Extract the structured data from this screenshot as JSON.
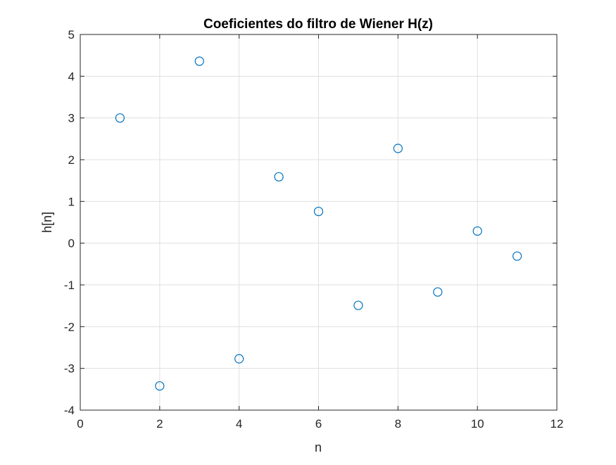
{
  "chart_data": {
    "type": "scatter",
    "title": "Coeficientes do filtro de Wiener H(z)",
    "xlabel": "n",
    "ylabel": "h[n]",
    "xlim": [
      0,
      12
    ],
    "ylim": [
      -4,
      5
    ],
    "xticks": [
      0,
      2,
      4,
      6,
      8,
      10,
      12
    ],
    "yticks": [
      -4,
      -3,
      -2,
      -1,
      0,
      1,
      2,
      3,
      4,
      5
    ],
    "xtick_labels": [
      "0",
      "2",
      "4",
      "6",
      "8",
      "10",
      "12"
    ],
    "ytick_labels": [
      "-4",
      "-3",
      "-2",
      "-1",
      "0",
      "1",
      "2",
      "3",
      "4",
      "5"
    ],
    "grid": true,
    "marker": "circle-open",
    "marker_color": "#0072BD",
    "x": [
      1,
      2,
      3,
      4,
      5,
      6,
      7,
      8,
      9,
      10,
      11
    ],
    "y": [
      3.0,
      -3.42,
      4.36,
      -2.77,
      1.59,
      0.76,
      -1.49,
      2.27,
      -1.17,
      0.29,
      -0.31
    ]
  }
}
